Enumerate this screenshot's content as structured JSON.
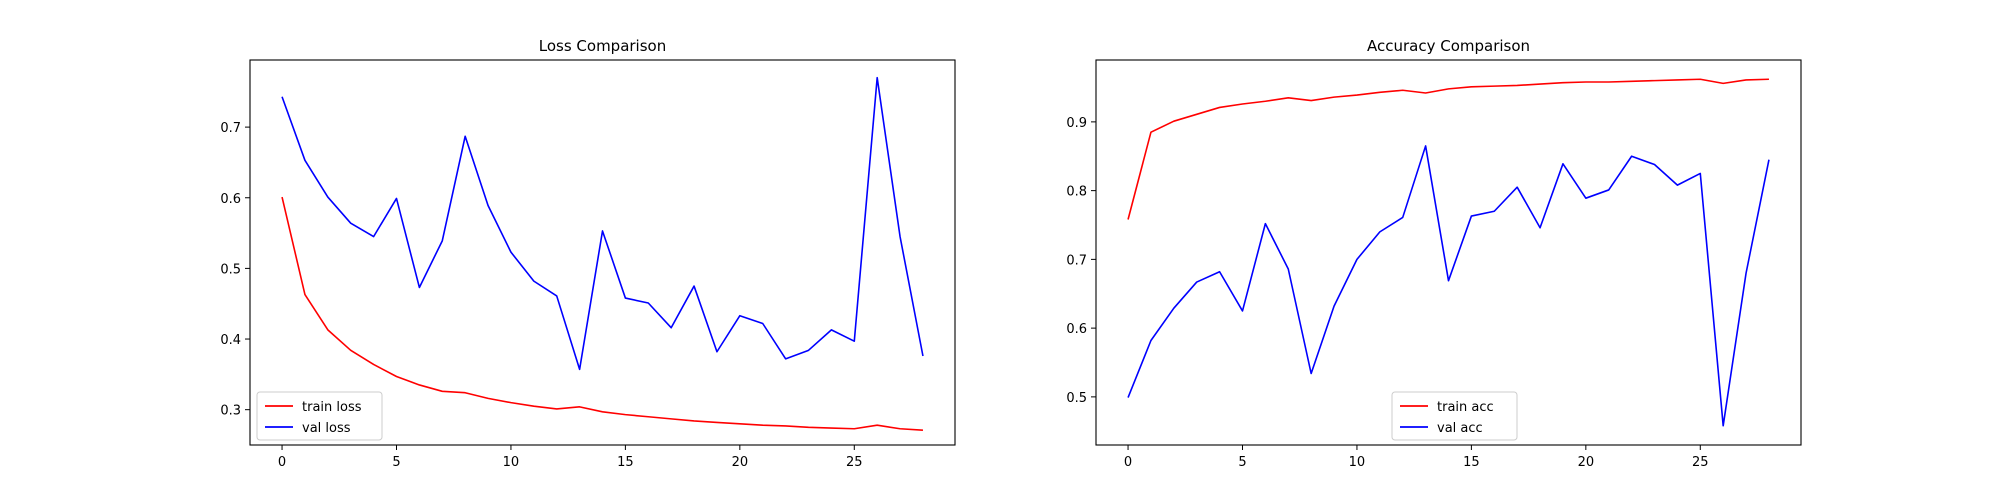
{
  "chart_data": [
    {
      "type": "line",
      "title": "Loss Comparison",
      "xlabel": "",
      "ylabel": "",
      "xlim": [
        -1.4,
        29.4
      ],
      "ylim": [
        0.25,
        0.795
      ],
      "xticks": [
        0,
        5,
        10,
        15,
        20,
        25
      ],
      "yticks": [
        0.3,
        0.4,
        0.5,
        0.6,
        0.7
      ],
      "grid": false,
      "legend_position": "lower-left",
      "x": [
        0,
        1,
        2,
        3,
        4,
        5,
        6,
        7,
        8,
        9,
        10,
        11,
        12,
        13,
        14,
        15,
        16,
        17,
        18,
        19,
        20,
        21,
        22,
        23,
        24,
        25,
        26,
        27,
        28
      ],
      "series": [
        {
          "name": "train loss",
          "color": "#ff0000",
          "values": [
            0.601,
            0.463,
            0.413,
            0.384,
            0.364,
            0.347,
            0.335,
            0.326,
            0.324,
            0.316,
            0.31,
            0.305,
            0.301,
            0.304,
            0.297,
            0.293,
            0.29,
            0.287,
            0.284,
            0.282,
            0.28,
            0.278,
            0.277,
            0.275,
            0.274,
            0.273,
            0.278,
            0.273,
            0.271
          ]
        },
        {
          "name": "val loss",
          "color": "#0000ff",
          "values": [
            0.743,
            0.653,
            0.601,
            0.564,
            0.545,
            0.599,
            0.473,
            0.539,
            0.687,
            0.589,
            0.523,
            0.482,
            0.461,
            0.357,
            0.553,
            0.458,
            0.451,
            0.416,
            0.475,
            0.382,
            0.433,
            0.422,
            0.372,
            0.384,
            0.413,
            0.397,
            0.77,
            0.545,
            0.376
          ]
        }
      ]
    },
    {
      "type": "line",
      "title": "Accuracy Comparison",
      "xlabel": "",
      "ylabel": "",
      "xlim": [
        -1.4,
        29.4
      ],
      "ylim": [
        0.43,
        0.99
      ],
      "xticks": [
        0,
        5,
        10,
        15,
        20,
        25
      ],
      "yticks": [
        0.5,
        0.6,
        0.7,
        0.8,
        0.9
      ],
      "grid": false,
      "legend_position": "lower-center",
      "x": [
        0,
        1,
        2,
        3,
        4,
        5,
        6,
        7,
        8,
        9,
        10,
        11,
        12,
        13,
        14,
        15,
        16,
        17,
        18,
        19,
        20,
        21,
        22,
        23,
        24,
        25,
        26,
        27,
        28
      ],
      "series": [
        {
          "name": "train acc",
          "color": "#ff0000",
          "values": [
            0.758,
            0.885,
            0.901,
            0.911,
            0.921,
            0.926,
            0.93,
            0.935,
            0.931,
            0.936,
            0.939,
            0.943,
            0.946,
            0.942,
            0.948,
            0.951,
            0.952,
            0.953,
            0.955,
            0.957,
            0.958,
            0.958,
            0.959,
            0.96,
            0.961,
            0.962,
            0.956,
            0.961,
            0.962
          ]
        },
        {
          "name": "val acc",
          "color": "#0000ff",
          "values": [
            0.499,
            0.582,
            0.629,
            0.667,
            0.682,
            0.625,
            0.752,
            0.686,
            0.534,
            0.632,
            0.7,
            0.74,
            0.761,
            0.865,
            0.669,
            0.763,
            0.77,
            0.805,
            0.746,
            0.839,
            0.789,
            0.801,
            0.85,
            0.838,
            0.808,
            0.825,
            0.458,
            0.68,
            0.845
          ]
        }
      ]
    }
  ]
}
